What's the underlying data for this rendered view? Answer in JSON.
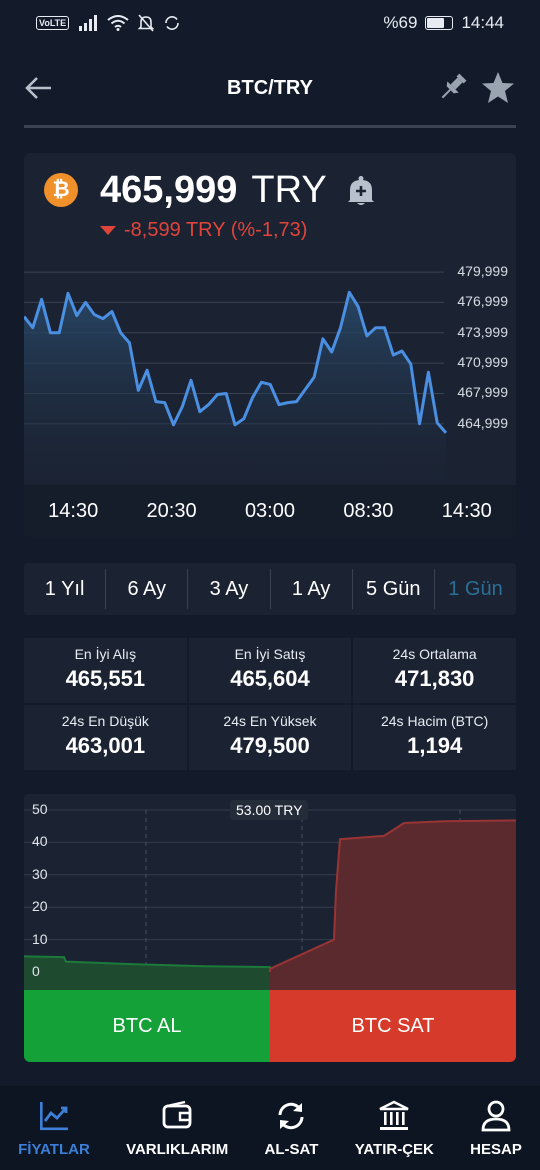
{
  "status_bar": {
    "volte": "VoLTE",
    "battery_text": "%69",
    "battery_level": 0.69,
    "time": "14:44"
  },
  "header": {
    "title": "BTC/TRY"
  },
  "price": {
    "coin_symbol": "₿",
    "value": "465,999",
    "currency": "TRY",
    "change": "-8,599 TRY (%-1,73)",
    "change_color": "#e0443a"
  },
  "chart_data": {
    "type": "area",
    "y_ticks": [
      "479,999",
      "476,999",
      "473,999",
      "470,999",
      "467,999",
      "464,999"
    ],
    "ylim": [
      463500,
      480500
    ],
    "x_ticks": [
      "14:30",
      "20:30",
      "03:00",
      "08:30",
      "14:30"
    ],
    "values": [
      475600,
      474500,
      477300,
      474000,
      474000,
      477900,
      475700,
      477000,
      475800,
      475400,
      476100,
      474000,
      473000,
      468300,
      470300,
      467200,
      467100,
      464900,
      466700,
      469300,
      466200,
      466900,
      467900,
      468000,
      464900,
      465500,
      467600,
      469100,
      468900,
      466900,
      467100,
      467200,
      468400,
      469600,
      473400,
      472100,
      474500,
      478000,
      476600,
      473700,
      474500,
      474500,
      471800,
      472200,
      470900,
      465000,
      470100,
      465100,
      464100
    ],
    "line_color": "#4a8fe2"
  },
  "ranges": {
    "items": [
      "1 Yıl",
      "6 Ay",
      "3 Ay",
      "1 Ay",
      "5 Gün",
      "1 Gün"
    ],
    "active_index": 5,
    "active_color": "#2b6e96"
  },
  "stats": [
    {
      "label": "En İyi Alış",
      "value": "465,551"
    },
    {
      "label": "En İyi Satış",
      "value": "465,604"
    },
    {
      "label": "24s Ortalama",
      "value": "471,830"
    },
    {
      "label": "24s En Düşük",
      "value": "463,001"
    },
    {
      "label": "24s En Yüksek",
      "value": "479,500"
    },
    {
      "label": "24s Hacim (BTC)",
      "value": "1,194"
    }
  ],
  "depth": {
    "y_ticks": [
      "50",
      "40",
      "30",
      "20",
      "10",
      "0"
    ],
    "ylim": [
      0,
      50
    ],
    "tooltip": "53.00 TRY",
    "bid_color": "#1e4a30",
    "ask_color": "#5a2a2e"
  },
  "actions": {
    "buy_label": "BTC AL",
    "sell_label": "BTC SAT",
    "buy_color": "#13a138",
    "sell_color": "#d63a2a"
  },
  "nav": {
    "items": [
      {
        "label": "FİYATLAR",
        "icon": "chart-icon"
      },
      {
        "label": "VARLIKLARIM",
        "icon": "wallet-icon"
      },
      {
        "label": "AL-SAT",
        "icon": "refresh-icon"
      },
      {
        "label": "YATIR-ÇEK",
        "icon": "bank-icon"
      },
      {
        "label": "HESAP",
        "icon": "user-icon"
      }
    ],
    "active_index": 0,
    "active_color": "#3d7fd6"
  }
}
